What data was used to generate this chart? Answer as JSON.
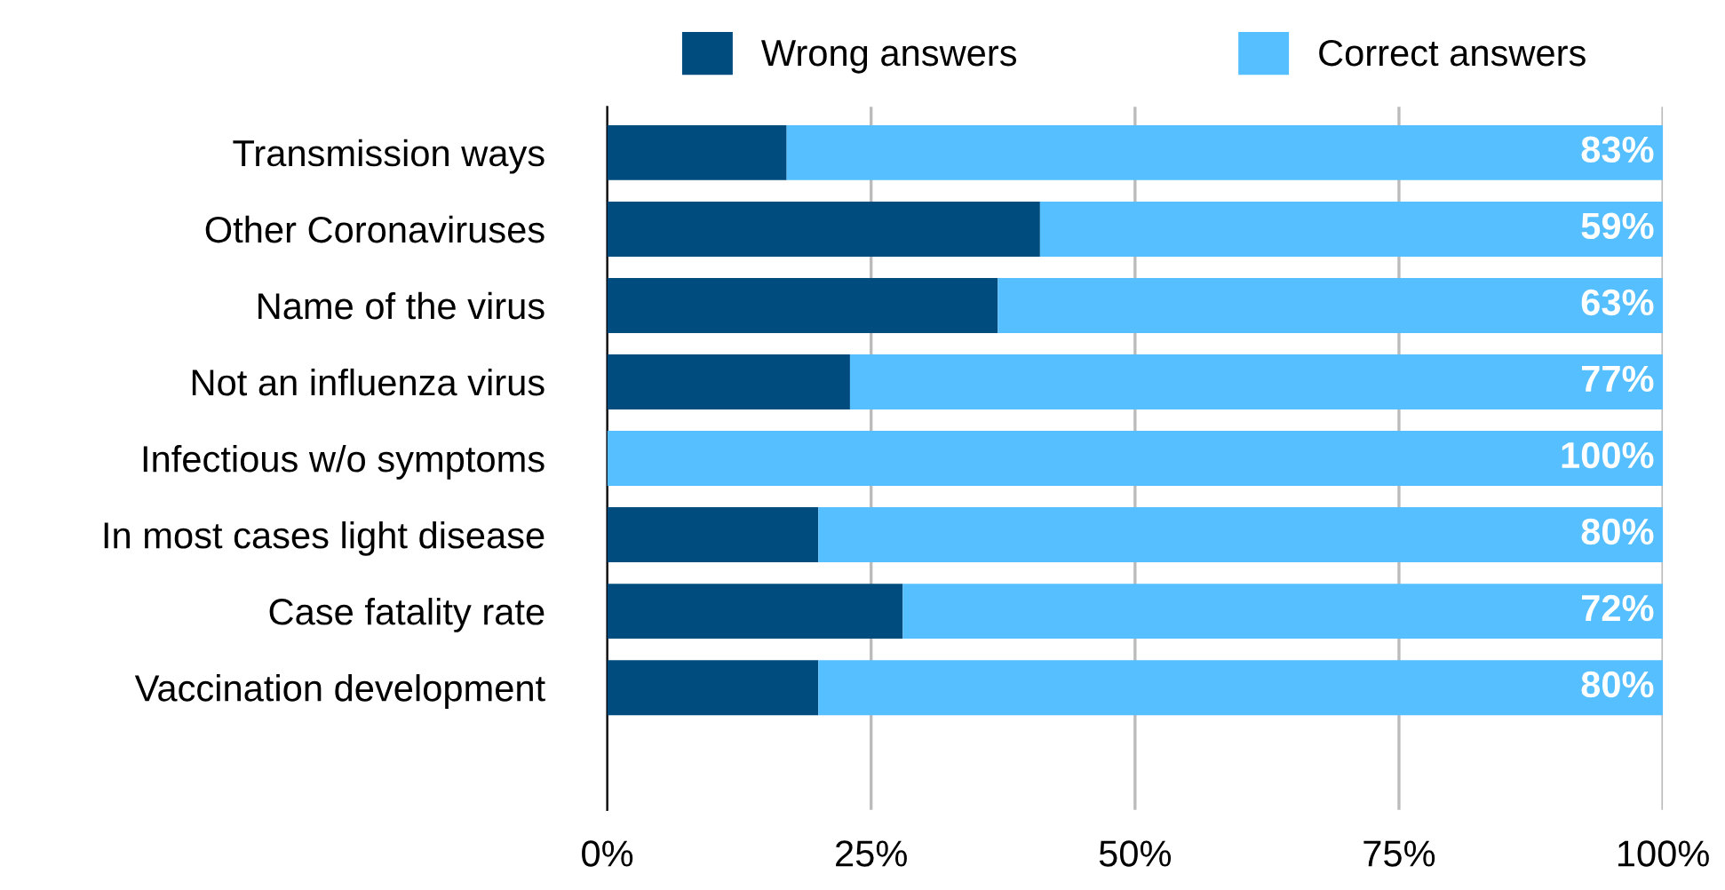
{
  "chart_data": {
    "type": "bar",
    "orientation": "horizontal",
    "stacked": true,
    "categories": [
      "Transmission ways",
      "Other Coronaviruses",
      "Name of the virus",
      "Not an influenza virus",
      "Infectious w/o symptoms",
      "In most cases light disease",
      "Case fatality rate",
      "Vaccination development"
    ],
    "series": [
      {
        "name": "Wrong answers",
        "color": "#004c7f",
        "values": [
          17,
          41,
          37,
          23,
          0,
          20,
          28,
          20
        ]
      },
      {
        "name": "Correct answers",
        "color": "#55bfff",
        "values": [
          83,
          59,
          63,
          77,
          100,
          80,
          72,
          80
        ],
        "value_labels": [
          "83%",
          "59%",
          "63%",
          "77%",
          "100%",
          "80%",
          "72%",
          "80%"
        ]
      }
    ],
    "xlim": [
      0,
      100
    ],
    "xticks": [
      {
        "value": 0,
        "label": "0%"
      },
      {
        "value": 25,
        "label": "25%"
      },
      {
        "value": 50,
        "label": "50%"
      },
      {
        "value": 75,
        "label": "75%"
      },
      {
        "value": 100,
        "label": "100%"
      }
    ],
    "grid": "x",
    "legend": "top"
  }
}
